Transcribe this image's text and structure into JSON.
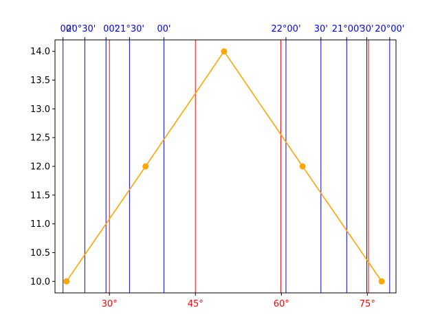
{
  "chart_data": {
    "type": "line",
    "title": "",
    "xlabel": "",
    "ylabel": "",
    "x_unit": "degrees",
    "xlim": [
      20.5,
      80.0
    ],
    "ylim": [
      9.8,
      14.2
    ],
    "series": [
      {
        "x": [
          22.5,
          36.3,
          50.0,
          63.7,
          77.5
        ],
        "y": [
          10.0,
          12.0,
          14.0,
          12.0,
          10.0
        ],
        "color": "#ffa500",
        "marker": "circle"
      }
    ],
    "y_ticks": [
      {
        "value": 10.0,
        "label": "10.0"
      },
      {
        "value": 10.5,
        "label": "10.5"
      },
      {
        "value": 11.0,
        "label": "11.0"
      },
      {
        "value": 11.5,
        "label": "11.5"
      },
      {
        "value": 12.0,
        "label": "12.0"
      },
      {
        "value": 12.5,
        "label": "12.5"
      },
      {
        "value": 13.0,
        "label": "13.0"
      },
      {
        "value": 13.5,
        "label": "13.5"
      },
      {
        "value": 14.0,
        "label": "14.0"
      }
    ],
    "bottom_axis": {
      "color": "#ff0000",
      "ticks": [
        {
          "value": 30,
          "label": "30°"
        },
        {
          "value": 45,
          "label": "45°"
        },
        {
          "value": 60,
          "label": "60°"
        },
        {
          "value": 75,
          "label": "75°"
        }
      ],
      "gridlines": [
        30,
        45,
        59.9,
        75.2
      ]
    },
    "top_axis": {
      "color": "#0000ff",
      "ticks": [
        {
          "value": 21.9,
          "label": "00'",
          "anchor": "end"
        },
        {
          "value": 25.7,
          "label": "20°30'",
          "anchor": "end"
        },
        {
          "value": 29.4,
          "label": "00'",
          "anchor": "end"
        },
        {
          "value": 33.5,
          "label": "21°30'",
          "anchor": "middle"
        },
        {
          "value": 39.5,
          "label": "00'",
          "anchor": "middle"
        },
        {
          "value": 60.8,
          "label": "22°00'",
          "anchor": "middle"
        },
        {
          "value": 66.9,
          "label": "30'",
          "anchor": "middle"
        },
        {
          "value": 71.4,
          "label": "21°00'",
          "anchor": "middle"
        },
        {
          "value": 74.9,
          "label": "30'",
          "anchor": "middle"
        },
        {
          "value": 78.9,
          "label": "20°00'",
          "anchor": "middle"
        }
      ]
    },
    "grid": true
  }
}
